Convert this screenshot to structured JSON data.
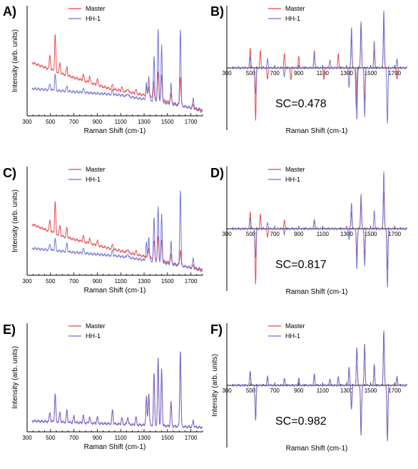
{
  "chart_data": [
    {
      "panel": "A)",
      "type": "line",
      "kind": "spectrum",
      "xlabel": "Raman Shift (cm-1)",
      "ylabel": "Intensity (arb. units)",
      "xlim": [
        300,
        1800
      ],
      "xticks": [
        "300",
        "500",
        "700",
        "900",
        "1100",
        "1300",
        "1500",
        "1700"
      ],
      "legend": "top-center",
      "series": [
        {
          "name": "Master",
          "color": "#e8434a",
          "offset": 0.46,
          "baseline": [
            [
              340,
              0.62
            ],
            [
              600,
              0.48
            ],
            [
              1000,
              0.3
            ],
            [
              1300,
              0.22
            ],
            [
              1800,
              0.02
            ]
          ],
          "peaks": [
            [
              540,
              0.45
            ],
            [
              495,
              0.18
            ],
            [
              580,
              0.12
            ],
            [
              640,
              0.1
            ],
            [
              780,
              0.08
            ],
            [
              835,
              0.08
            ],
            [
              900,
              0.07
            ],
            [
              1030,
              0.06
            ],
            [
              1110,
              0.05
            ],
            [
              1160,
              0.05
            ],
            [
              1230,
              0.05
            ],
            [
              1320,
              0.1
            ],
            [
              1340,
              0.12
            ],
            [
              1380,
              0.2
            ],
            [
              1420,
              0.34
            ],
            [
              1450,
              0.3
            ],
            [
              1530,
              0.1
            ],
            [
              1610,
              0.36
            ],
            [
              1720,
              0.05
            ]
          ]
        },
        {
          "name": "HH-1",
          "color": "#6d6fd6",
          "offset": 0.5,
          "baseline": [
            [
              340,
              0.3
            ],
            [
              700,
              0.26
            ],
            [
              1100,
              0.22
            ],
            [
              1800,
              0.04
            ]
          ],
          "peaks": [
            [
              540,
              0.2
            ],
            [
              495,
              0.08
            ],
            [
              640,
              0.06
            ],
            [
              780,
              0.05
            ],
            [
              1030,
              0.06
            ],
            [
              1160,
              0.04
            ],
            [
              1320,
              0.2
            ],
            [
              1340,
              0.3
            ],
            [
              1385,
              0.55
            ],
            [
              1420,
              0.9
            ],
            [
              1450,
              0.7
            ],
            [
              1530,
              0.25
            ],
            [
              1610,
              0.95
            ],
            [
              1720,
              0.12
            ]
          ]
        }
      ]
    },
    {
      "panel": "B)",
      "type": "line",
      "kind": "derivative",
      "xlabel": "Raman Shift (cm-1)",
      "ylabel": "",
      "xlim": [
        300,
        1800
      ],
      "xticks": [
        "300",
        "500",
        "700",
        "900",
        "1100",
        "1300",
        "1500",
        "1700"
      ],
      "legend": "top-center",
      "annotation": "SC=0.478",
      "series": [
        {
          "name": "Master",
          "color": "#e8434a",
          "offset": 0,
          "peaks": [
            [
              495,
              0.35
            ],
            [
              540,
              -0.9
            ],
            [
              580,
              0.3
            ],
            [
              640,
              -0.2
            ],
            [
              780,
              0.25
            ],
            [
              835,
              -0.2
            ],
            [
              900,
              0.2
            ],
            [
              1030,
              0.3
            ],
            [
              1110,
              -0.2
            ],
            [
              1230,
              0.25
            ],
            [
              1340,
              0.55
            ],
            [
              1380,
              -0.7
            ],
            [
              1420,
              0.75
            ],
            [
              1450,
              -0.6
            ],
            [
              1530,
              0.3
            ],
            [
              1610,
              0.85
            ],
            [
              1720,
              -0.2
            ]
          ]
        },
        {
          "name": "HH-1",
          "color": "#6d6fd6",
          "offset": 0,
          "peaks": [
            [
              495,
              0.2
            ],
            [
              540,
              -0.45
            ],
            [
              640,
              0.15
            ],
            [
              780,
              -0.15
            ],
            [
              1030,
              0.25
            ],
            [
              1160,
              0.15
            ],
            [
              1320,
              -0.35
            ],
            [
              1340,
              0.7
            ],
            [
              1385,
              -0.9
            ],
            [
              1420,
              0.8
            ],
            [
              1450,
              -0.85
            ],
            [
              1530,
              0.45
            ],
            [
              1610,
              1.0
            ],
            [
              1640,
              -0.95
            ],
            [
              1720,
              0.15
            ]
          ]
        }
      ]
    },
    {
      "panel": "C)",
      "type": "line",
      "kind": "spectrum",
      "xlabel": "Raman Shift (cm-1)",
      "ylabel": "Intensity (arb. units)",
      "xlim": [
        300,
        1800
      ],
      "xticks": [
        "300",
        "500",
        "700",
        "900",
        "1100",
        "1300",
        "1500",
        "1700"
      ],
      "legend": "top-center",
      "series": [
        {
          "name": "Master",
          "color": "#e8434a",
          "offset": 0.5,
          "baseline": [
            [
              340,
              0.6
            ],
            [
              600,
              0.45
            ],
            [
              1000,
              0.3
            ],
            [
              1300,
              0.2
            ],
            [
              1800,
              0.02
            ]
          ],
          "peaks": [
            [
              540,
              0.4
            ],
            [
              495,
              0.15
            ],
            [
              580,
              0.12
            ],
            [
              640,
              0.12
            ],
            [
              780,
              0.08
            ],
            [
              835,
              0.07
            ],
            [
              900,
              0.06
            ],
            [
              1030,
              0.06
            ],
            [
              1160,
              0.05
            ],
            [
              1230,
              0.05
            ],
            [
              1340,
              0.12
            ],
            [
              1385,
              0.22
            ],
            [
              1420,
              0.3
            ],
            [
              1450,
              0.25
            ],
            [
              1530,
              0.1
            ],
            [
              1610,
              0.2
            ],
            [
              1720,
              0.04
            ]
          ]
        },
        {
          "name": "HH-1",
          "color": "#6d6fd6",
          "offset": 0.5,
          "baseline": [
            [
              340,
              0.3
            ],
            [
              700,
              0.25
            ],
            [
              1100,
              0.2
            ],
            [
              1800,
              0.04
            ]
          ],
          "peaks": [
            [
              540,
              0.15
            ],
            [
              495,
              0.08
            ],
            [
              640,
              0.1
            ],
            [
              780,
              0.06
            ],
            [
              1030,
              0.07
            ],
            [
              1160,
              0.05
            ],
            [
              1320,
              0.22
            ],
            [
              1340,
              0.3
            ],
            [
              1385,
              0.55
            ],
            [
              1420,
              0.7
            ],
            [
              1450,
              0.6
            ],
            [
              1530,
              0.28
            ],
            [
              1610,
              0.95
            ],
            [
              1720,
              0.12
            ]
          ]
        }
      ]
    },
    {
      "panel": "D)",
      "type": "line",
      "kind": "derivative",
      "xlabel": "Raman Shift (cm-1)",
      "ylabel": "",
      "xlim": [
        300,
        1800
      ],
      "xticks": [
        "300",
        "500",
        "700",
        "900",
        "1100",
        "1300",
        "1500",
        "1700"
      ],
      "legend": "top-center",
      "annotation": "SC=0.817",
      "series": [
        {
          "name": "Master",
          "color": "#e8434a",
          "offset": 0,
          "peaks": [
            [
              495,
              0.3
            ],
            [
              540,
              -0.95
            ],
            [
              580,
              0.25
            ],
            [
              640,
              -0.15
            ],
            [
              780,
              0.15
            ],
            [
              1030,
              0.15
            ],
            [
              1340,
              0.3
            ],
            [
              1385,
              -0.5
            ],
            [
              1420,
              0.45
            ],
            [
              1450,
              -0.5
            ],
            [
              1610,
              0.65
            ],
            [
              1640,
              -0.7
            ]
          ]
        },
        {
          "name": "HH-1",
          "color": "#6d6fd6",
          "offset": 0,
          "peaks": [
            [
              495,
              0.2
            ],
            [
              540,
              -0.5
            ],
            [
              640,
              0.1
            ],
            [
              780,
              -0.1
            ],
            [
              1030,
              0.15
            ],
            [
              1320,
              -0.2
            ],
            [
              1340,
              0.45
            ],
            [
              1385,
              -0.7
            ],
            [
              1420,
              0.6
            ],
            [
              1450,
              -0.65
            ],
            [
              1530,
              0.3
            ],
            [
              1610,
              1.0
            ],
            [
              1640,
              -1.0
            ]
          ]
        }
      ]
    },
    {
      "panel": "E)",
      "type": "line",
      "kind": "spectrum",
      "xlabel": "Raman Shift (cm-1)",
      "ylabel": "Intensity (arb. units)",
      "xlim": [
        300,
        1800
      ],
      "xticks": [
        "300",
        "500",
        "700",
        "900",
        "1100",
        "1300",
        "1500",
        "1700"
      ],
      "legend": "top-center",
      "series": [
        {
          "name": "Master",
          "color": "#e8434a",
          "offset": 0.5,
          "baseline": [
            [
              340,
              0.1
            ],
            [
              700,
              0.08
            ],
            [
              1100,
              0.06
            ],
            [
              1800,
              0.02
            ]
          ],
          "peaks": [
            [
              495,
              0.12
            ],
            [
              540,
              0.35
            ],
            [
              580,
              0.12
            ],
            [
              640,
              0.15
            ],
            [
              700,
              0.08
            ],
            [
              780,
              0.1
            ],
            [
              835,
              0.08
            ],
            [
              900,
              0.08
            ],
            [
              1030,
              0.18
            ],
            [
              1110,
              0.08
            ],
            [
              1160,
              0.1
            ],
            [
              1230,
              0.1
            ],
            [
              1320,
              0.35
            ],
            [
              1340,
              0.4
            ],
            [
              1385,
              0.65
            ],
            [
              1420,
              0.85
            ],
            [
              1450,
              0.7
            ],
            [
              1530,
              0.3
            ],
            [
              1610,
              0.95
            ],
            [
              1720,
              0.08
            ]
          ]
        },
        {
          "name": "HH-1",
          "color": "#6d6fd6",
          "offset": 0.5,
          "baseline": [
            [
              340,
              0.1
            ],
            [
              700,
              0.08
            ],
            [
              1100,
              0.06
            ],
            [
              1800,
              0.02
            ]
          ],
          "peaks": [
            [
              495,
              0.12
            ],
            [
              540,
              0.35
            ],
            [
              580,
              0.12
            ],
            [
              640,
              0.15
            ],
            [
              700,
              0.08
            ],
            [
              780,
              0.1
            ],
            [
              835,
              0.08
            ],
            [
              900,
              0.08
            ],
            [
              1030,
              0.18
            ],
            [
              1110,
              0.08
            ],
            [
              1160,
              0.1
            ],
            [
              1230,
              0.1
            ],
            [
              1320,
              0.35
            ],
            [
              1340,
              0.4
            ],
            [
              1385,
              0.65
            ],
            [
              1420,
              0.85
            ],
            [
              1450,
              0.7
            ],
            [
              1530,
              0.3
            ],
            [
              1610,
              0.95
            ],
            [
              1720,
              0.08
            ]
          ]
        }
      ]
    },
    {
      "panel": "F)",
      "type": "line",
      "kind": "derivative",
      "xlabel": "Raman Shift (cm-1)",
      "ylabel": "Intensity (arb. units)",
      "xlim": [
        300,
        1800
      ],
      "xticks": [
        "300",
        "500",
        "700",
        "900",
        "1100",
        "1300",
        "1500",
        "1700"
      ],
      "legend": "top-center",
      "annotation": "SC=0.982",
      "series": [
        {
          "name": "Master",
          "color": "#e8434a",
          "offset": 0,
          "peaks": [
            [
              495,
              0.25
            ],
            [
              540,
              -0.6
            ],
            [
              640,
              0.15
            ],
            [
              780,
              0.12
            ],
            [
              900,
              0.12
            ],
            [
              1030,
              0.2
            ],
            [
              1160,
              0.12
            ],
            [
              1230,
              0.15
            ],
            [
              1320,
              0.3
            ],
            [
              1340,
              -0.4
            ],
            [
              1385,
              0.65
            ],
            [
              1420,
              -0.85
            ],
            [
              1450,
              0.7
            ],
            [
              1530,
              0.35
            ],
            [
              1610,
              0.95
            ],
            [
              1640,
              -0.95
            ],
            [
              1720,
              0.15
            ]
          ]
        },
        {
          "name": "HH-1",
          "color": "#6d6fd6",
          "offset": 0,
          "peaks": [
            [
              495,
              0.25
            ],
            [
              540,
              -0.6
            ],
            [
              640,
              0.15
            ],
            [
              780,
              0.12
            ],
            [
              900,
              0.12
            ],
            [
              1030,
              0.2
            ],
            [
              1160,
              0.12
            ],
            [
              1230,
              0.15
            ],
            [
              1320,
              0.3
            ],
            [
              1340,
              -0.4
            ],
            [
              1385,
              0.65
            ],
            [
              1420,
              -0.85
            ],
            [
              1450,
              0.7
            ],
            [
              1530,
              0.35
            ],
            [
              1610,
              0.95
            ],
            [
              1640,
              -0.95
            ],
            [
              1720,
              0.15
            ]
          ]
        }
      ]
    }
  ]
}
